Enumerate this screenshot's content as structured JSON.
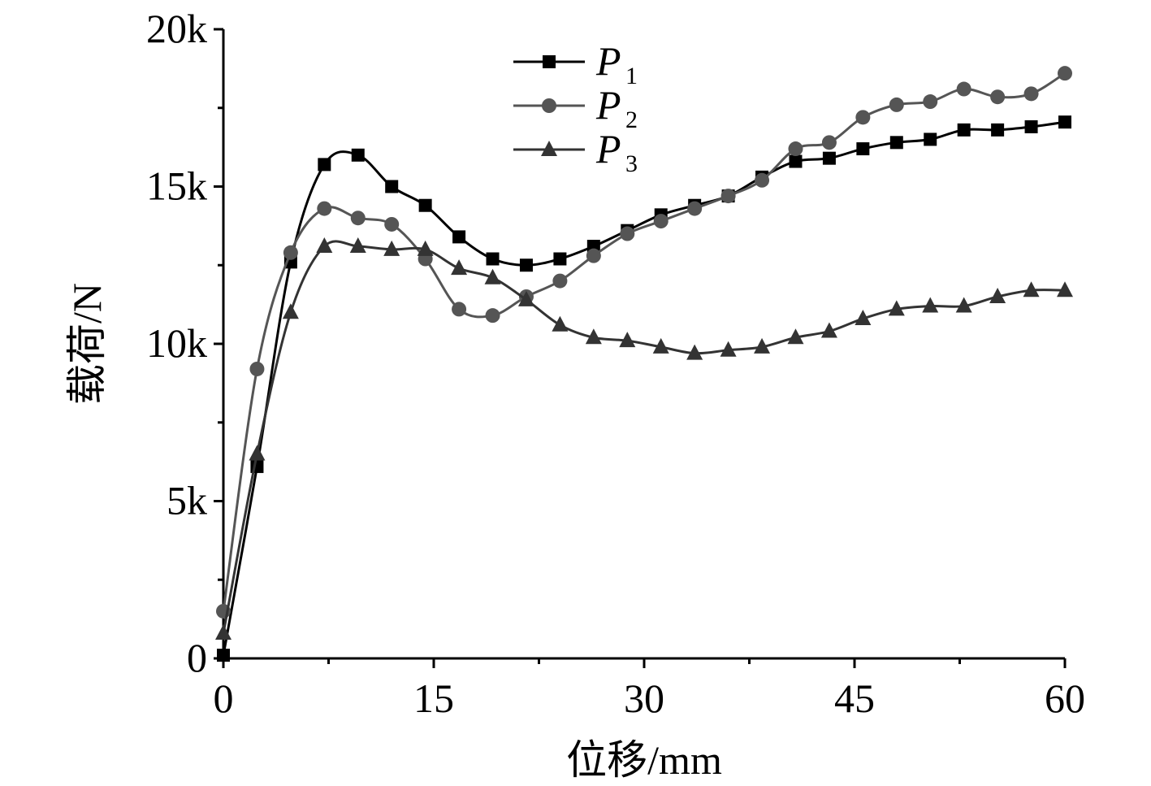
{
  "chart_data": {
    "type": "line",
    "title": "",
    "xlabel": "位移/mm",
    "ylabel": "载荷/N",
    "xlim": [
      0,
      60
    ],
    "ylim": [
      0,
      20000
    ],
    "xticks": [
      0,
      15,
      30,
      45,
      60
    ],
    "xtick_labels": [
      "0",
      "15",
      "30",
      "45",
      "60"
    ],
    "yticks": [
      0,
      5000,
      10000,
      15000,
      20000
    ],
    "ytick_labels": [
      "0",
      "5k",
      "10k",
      "15k",
      "20k"
    ],
    "grid": false,
    "legend_position": "top-center",
    "x": [
      0,
      2.4,
      4.8,
      7.2,
      9.6,
      12,
      14.4,
      16.8,
      19.2,
      21.6,
      24,
      26.4,
      28.8,
      31.2,
      33.6,
      36,
      38.4,
      40.8,
      43.2,
      45.6,
      48,
      50.4,
      52.8,
      55.2,
      57.6,
      60
    ],
    "series": [
      {
        "name": "P",
        "subscript": "1",
        "marker": "square",
        "color": "#000000",
        "values": [
          100,
          6100,
          12600,
          15700,
          16000,
          15000,
          14400,
          13400,
          12700,
          12500,
          12700,
          13100,
          13600,
          14100,
          14400,
          14700,
          15300,
          15800,
          15900,
          16200,
          16400,
          16500,
          16800,
          16800,
          16900,
          17050
        ]
      },
      {
        "name": "P",
        "subscript": "2",
        "marker": "circle",
        "color": "#555555",
        "values": [
          1500,
          9200,
          12900,
          14300,
          14000,
          13800,
          12700,
          11100,
          10900,
          11500,
          12000,
          12800,
          13500,
          13900,
          14300,
          14700,
          15200,
          16200,
          16400,
          17200,
          17600,
          17700,
          18100,
          17850,
          17950,
          18600
        ]
      },
      {
        "name": "P",
        "subscript": "3",
        "marker": "triangle",
        "color": "#333333",
        "values": [
          800,
          6500,
          11000,
          13100,
          13100,
          13000,
          13000,
          12400,
          12100,
          11400,
          10600,
          10200,
          10100,
          9900,
          9700,
          9800,
          9900,
          10200,
          10400,
          10800,
          11100,
          11200,
          11200,
          11500,
          11700,
          11700
        ]
      }
    ]
  }
}
